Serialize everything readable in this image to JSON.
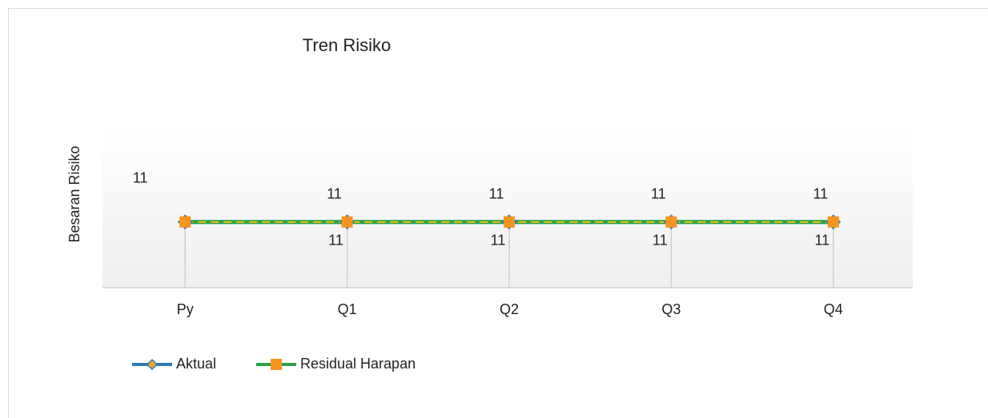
{
  "chart_data": {
    "type": "line",
    "title": "Tren Risiko",
    "y_label": "Besaran Risiko",
    "categories": [
      "Py",
      "Q1",
      "Q2",
      "Q3",
      "Q4"
    ],
    "series": [
      {
        "name": "Aktual",
        "color": "#2b7bba",
        "marker": "diamond",
        "marker_colors": [
          "#f5a623",
          "#f39c12",
          "#f1e40f",
          "#f39c12",
          "#27ae60"
        ],
        "values": [
          11,
          11,
          11,
          11,
          11
        ]
      },
      {
        "name": "Residual Harapan",
        "color": "#2ca24a",
        "marker": "square",
        "marker_color": "#f7941d",
        "dash_color": "#f4c20d",
        "values": [
          11,
          11,
          11,
          11,
          11
        ],
        "value_labels": [
          null,
          "11",
          "11",
          "11",
          "11"
        ]
      }
    ],
    "ylim": [
      0,
      27
    ],
    "legend": "bottom-left"
  }
}
